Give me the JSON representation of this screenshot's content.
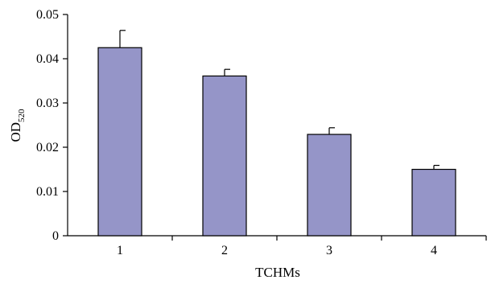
{
  "chart_data": {
    "type": "bar",
    "categories": [
      "1",
      "2",
      "3",
      "4"
    ],
    "values": [
      0.0425,
      0.0361,
      0.0229,
      0.015
    ],
    "errors": [
      0.0039,
      0.0015,
      0.0015,
      0.0009
    ],
    "xlabel": "TCHMs",
    "ylabel_main": "OD",
    "ylabel_sub": "520",
    "ylim": [
      0,
      0.05
    ],
    "yticks": [
      0,
      0.01,
      0.02,
      0.03,
      0.04,
      0.05
    ],
    "ytick_labels": [
      "0",
      "0.01",
      "0.02",
      "0.03",
      "0.04",
      "0.05"
    ],
    "bar_color": "#9595c8",
    "grid": false,
    "legend": "none"
  }
}
